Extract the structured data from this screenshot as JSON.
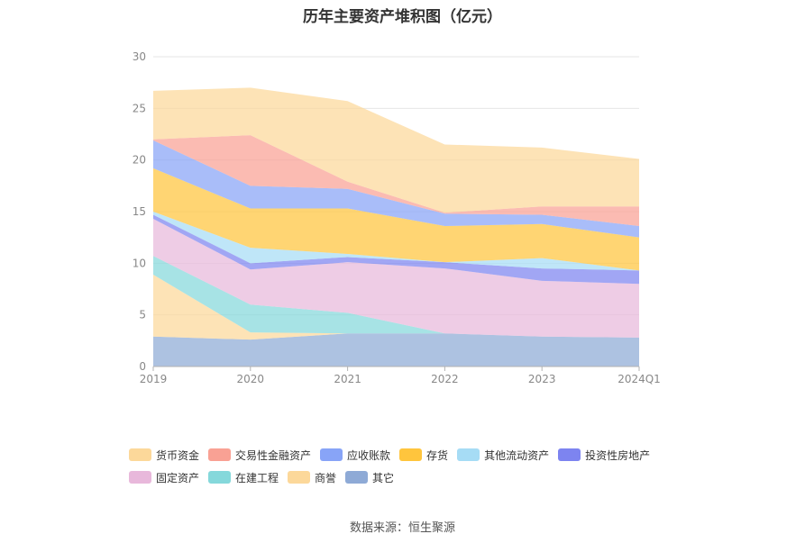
{
  "chart_data": {
    "type": "area",
    "stacked": true,
    "title": "历年主要资产堆积图（亿元）",
    "xlabel": "",
    "ylabel": "",
    "categories": [
      "2019",
      "2020",
      "2021",
      "2022",
      "2023",
      "2024Q1"
    ],
    "ylim": [
      0,
      30
    ],
    "yticks": [
      0,
      5,
      10,
      15,
      20,
      25,
      30
    ],
    "grid": true,
    "legend_position": "bottom",
    "series": [
      {
        "name": "其它",
        "color": "#8eaad6",
        "values": [
          2.9,
          2.6,
          3.2,
          3.2,
          2.9,
          2.8
        ]
      },
      {
        "name": "商誉",
        "color": "#fcd89a",
        "values": [
          6.0,
          0.7,
          0.0,
          0.0,
          0.0,
          0.0
        ]
      },
      {
        "name": "在建工程",
        "color": "#85d8db",
        "values": [
          1.8,
          2.7,
          2.0,
          0.0,
          0.0,
          0.0
        ]
      },
      {
        "name": "固定资产",
        "color": "#e8b8db",
        "values": [
          3.6,
          3.4,
          4.9,
          6.3,
          5.4,
          5.2
        ]
      },
      {
        "name": "投资性房地产",
        "color": "#7d84f0",
        "values": [
          0.4,
          0.6,
          0.5,
          0.6,
          1.2,
          1.3
        ]
      },
      {
        "name": "其他流动资产",
        "color": "#a6dcf5",
        "values": [
          0.3,
          1.5,
          0.3,
          0.0,
          1.0,
          0.0
        ]
      },
      {
        "name": "存货",
        "color": "#ffc53d",
        "values": [
          4.2,
          3.8,
          4.4,
          3.5,
          3.3,
          3.2
        ]
      },
      {
        "name": "应收账款",
        "color": "#88a4f7",
        "values": [
          2.7,
          2.2,
          1.9,
          1.2,
          0.9,
          1.1
        ]
      },
      {
        "name": "交易性金融资产",
        "color": "#f9a194",
        "values": [
          0.1,
          4.9,
          0.7,
          0.1,
          0.8,
          1.9
        ]
      },
      {
        "name": "货币资金",
        "color": "#fcd89a",
        "values": [
          4.7,
          4.6,
          7.8,
          6.6,
          5.7,
          4.6
        ]
      }
    ],
    "legend_order": [
      "货币资金",
      "交易性金融资产",
      "应收账款",
      "存货",
      "其他流动资产",
      "投资性房地产",
      "固定资产",
      "在建工程",
      "商誉",
      "其它"
    ]
  },
  "source_text": "数据来源：恒生聚源"
}
